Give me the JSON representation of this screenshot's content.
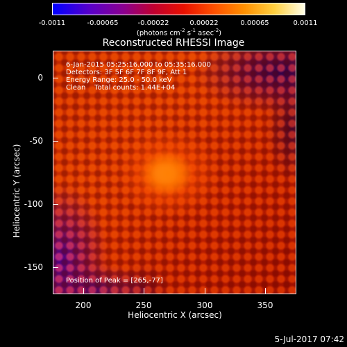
{
  "colorbar": {
    "ticks": [
      "-0.0011",
      "-0.00065",
      "-0.00022",
      "0.00022",
      "0.00065",
      "0.0011"
    ],
    "units": {
      "pre": "(photons cm",
      "e1": "-2",
      "mid1": " s",
      "e2": "-1",
      "mid2": " asec",
      "e3": "-2",
      "post": ")"
    }
  },
  "title": "Reconstructed RHESSI Image",
  "info": {
    "time": "6-Jan-2015 05:25:16.000 to 05:35:16.000",
    "detectors": "Detectors: 3F 5F 6F 7F 8F 9F, Att 1",
    "energy": "Energy Range: 25.0 - 50.0 keV",
    "clean": "Clean    Total counts: 1.44E+04",
    "peak": "Position of Peak = [265,-77]"
  },
  "axes": {
    "xlabel": "Heliocentric X (arcsec)",
    "ylabel": "Heliocentric Y (arcsec)",
    "xticks": [
      "200",
      "250",
      "300",
      "350"
    ],
    "yticks": [
      "0",
      "-50",
      "-100",
      "-150"
    ]
  },
  "footer": {
    "date": "5-Jul-2017 07:42"
  }
}
